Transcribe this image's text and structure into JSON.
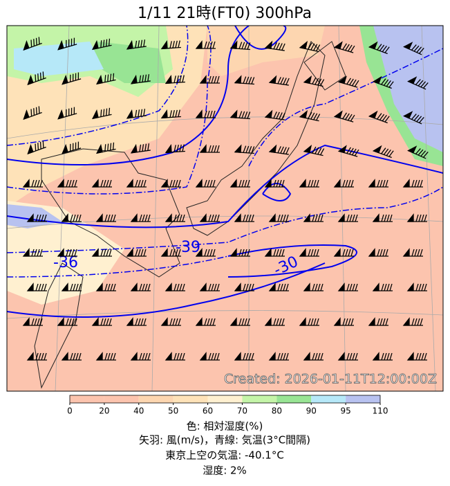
{
  "title": "1/11  21時(FT0)    300hPa",
  "created": "Created: 2026-01-11T12:00:00Z",
  "contour_labels": [
    "-36",
    "-39",
    "-30"
  ],
  "colorbar": {
    "boundaries": [
      0,
      20,
      40,
      50,
      60,
      70,
      80,
      90,
      95,
      110
    ],
    "colors": [
      "#fcc4ae",
      "#fcc4ae",
      "#fdd6b0",
      "#fee2b8",
      "#fff0d0",
      "#c4f4a8",
      "#98e494",
      "#b6e8f8",
      "#b8c2f0"
    ]
  },
  "legend": [
    "色: 相対湿度(%)",
    "矢羽: 風(m/s)，青線: 気温(3°C間隔)",
    "東京上空の気温: -40.1°C",
    "湿度: 2%"
  ]
}
